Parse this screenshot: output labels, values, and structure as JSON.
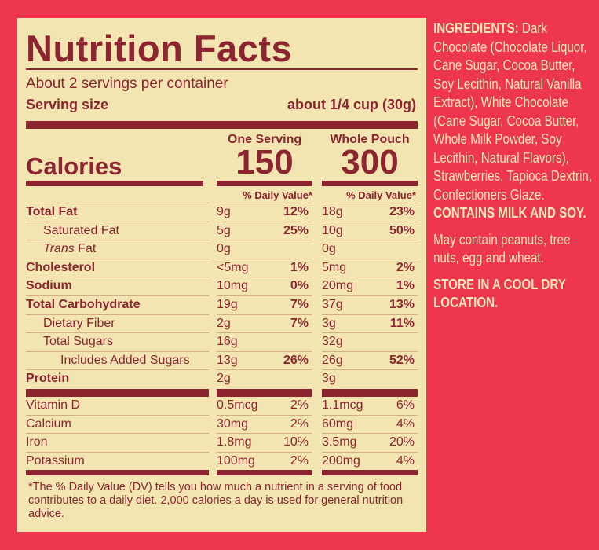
{
  "colors": {
    "background": "#ee364f",
    "panel": "#f2e5b1",
    "text": "#8c2530",
    "side_text": "#f5e8b6"
  },
  "label": {
    "title": "Nutrition Facts",
    "servings_per_container": "About 2 servings per container",
    "serving_size_label": "Serving size",
    "serving_size_value": "about 1/4 cup (30g)",
    "columns": [
      {
        "heading": "One Serving",
        "calories": "150",
        "dv_heading": "% Daily Value*"
      },
      {
        "heading": "Whole Pouch",
        "calories": "300",
        "dv_heading": "% Daily Value*"
      }
    ],
    "calories_label": "Calories",
    "nutrients": [
      {
        "name": "Total Fat",
        "bold": true,
        "indent": 0,
        "values": [
          [
            "9g",
            "12%"
          ],
          [
            "18g",
            "23%"
          ]
        ]
      },
      {
        "name": "Saturated Fat",
        "bold": false,
        "indent": 1,
        "values": [
          [
            "5g",
            "25%"
          ],
          [
            "10g",
            "50%"
          ]
        ]
      },
      {
        "name": "Trans Fat",
        "italic_prefix": "Trans",
        "bold": false,
        "indent": 1,
        "values": [
          [
            "0g",
            ""
          ],
          [
            "0g",
            ""
          ]
        ]
      },
      {
        "name": "Cholesterol",
        "bold": true,
        "indent": 0,
        "values": [
          [
            "<5mg",
            "1%"
          ],
          [
            "5mg",
            "2%"
          ]
        ]
      },
      {
        "name": "Sodium",
        "bold": true,
        "indent": 0,
        "values": [
          [
            "10mg",
            "0%"
          ],
          [
            "20mg",
            "1%"
          ]
        ]
      },
      {
        "name": "Total Carbohydrate",
        "bold": true,
        "indent": 0,
        "values": [
          [
            "19g",
            "7%"
          ],
          [
            "37g",
            "13%"
          ]
        ]
      },
      {
        "name": "Dietary Fiber",
        "bold": false,
        "indent": 1,
        "values": [
          [
            "2g",
            "7%"
          ],
          [
            "3g",
            "11%"
          ]
        ]
      },
      {
        "name": "Total Sugars",
        "bold": false,
        "indent": 1,
        "values": [
          [
            "16g",
            ""
          ],
          [
            "32g",
            ""
          ]
        ]
      },
      {
        "name": "Includes Added Sugars",
        "bold": false,
        "indent": 2,
        "values": [
          [
            "13g",
            "26%"
          ],
          [
            "26g",
            "52%"
          ]
        ]
      },
      {
        "name": "Protein",
        "bold": true,
        "indent": 0,
        "values": [
          [
            "2g",
            ""
          ],
          [
            "3g",
            ""
          ]
        ]
      }
    ],
    "vitamins": [
      {
        "name": "Vitamin D",
        "values": [
          [
            "0.5mcg",
            "2%"
          ],
          [
            "1.1mcg",
            "6%"
          ]
        ]
      },
      {
        "name": "Calcium",
        "values": [
          [
            "30mg",
            "2%"
          ],
          [
            "60mg",
            "4%"
          ]
        ]
      },
      {
        "name": "Iron",
        "values": [
          [
            "1.8mg",
            "10%"
          ],
          [
            "3.5mg",
            "20%"
          ]
        ]
      },
      {
        "name": "Potassium",
        "values": [
          [
            "100mg",
            "2%"
          ],
          [
            "200mg",
            "4%"
          ]
        ]
      }
    ],
    "footnote": "*The % Daily Value (DV) tells you how much a nutrient in a serving of food contributes to a daily diet. 2,000 calories a day is used for general nutrition advice."
  },
  "side": {
    "ingredients_label": "INGREDIENTS:",
    "ingredients_text": "Dark Chocolate (Chocolate Liquor, Cane Sugar, Cocoa Butter, Soy Lecithin, Natural Vanilla Extract), White Chocolate (Cane Sugar, Cocoa Butter, Whole Milk Powder, Soy Lecithin, Natural Flavors), Strawberries, Tapioca Dextrin, Confectioners Glaze.",
    "contains": "CONTAINS MILK AND SOY.",
    "may_contain": "May contain peanuts, tree nuts, egg and wheat.",
    "storage": "STORE IN A COOL DRY LOCATION."
  }
}
